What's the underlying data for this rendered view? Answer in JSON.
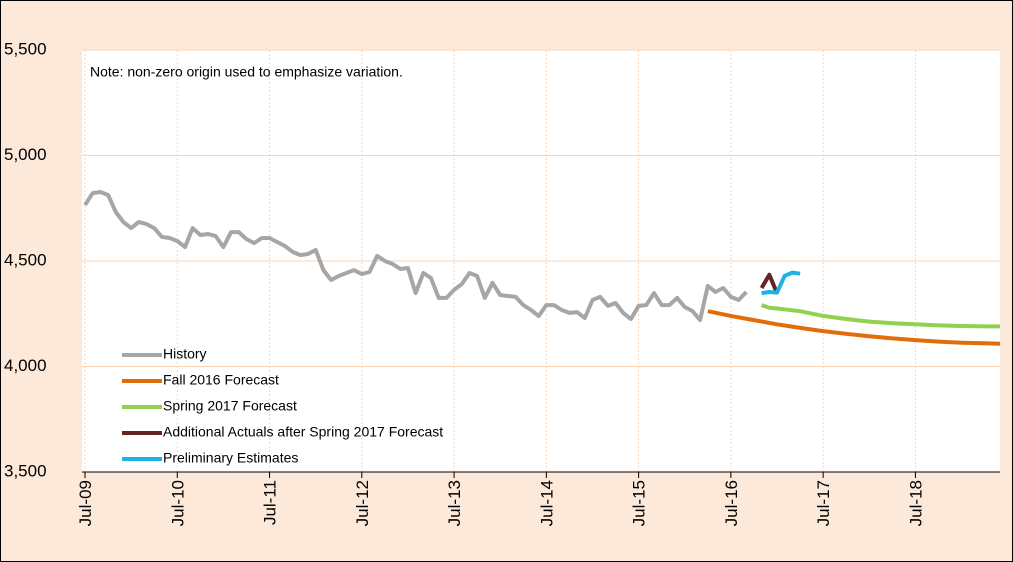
{
  "chart_data": {
    "type": "line",
    "annotations": [
      "Note: non-zero origin used to emphasize variation."
    ],
    "xlim": [
      "2009-07",
      "2019-06"
    ],
    "xticks": [
      {
        "value": "2009-07",
        "label": "Jul-09"
      },
      {
        "value": "2010-07",
        "label": "Jul-10"
      },
      {
        "value": "2011-07",
        "label": "Jul-11"
      },
      {
        "value": "2012-07",
        "label": "Jul-12"
      },
      {
        "value": "2013-07",
        "label": "Jul-13"
      },
      {
        "value": "2014-07",
        "label": "Jul-14"
      },
      {
        "value": "2015-07",
        "label": "Jul-15"
      },
      {
        "value": "2016-07",
        "label": "Jul-16"
      },
      {
        "value": "2017-07",
        "label": "Jul-17"
      },
      {
        "value": "2018-07",
        "label": "Jul-18"
      }
    ],
    "ylim": [
      3500,
      5500
    ],
    "yticks": [
      {
        "value": 3500,
        "label": "3,500"
      },
      {
        "value": 4000,
        "label": "4,000"
      },
      {
        "value": 4500,
        "label": "4,500"
      },
      {
        "value": 5000,
        "label": "5,000"
      },
      {
        "value": 5500,
        "label": "5,500"
      }
    ],
    "grid": true,
    "legend": "lower left",
    "series": [
      {
        "name": "History",
        "color": "#a6a6a6",
        "x": [
          "2009-07",
          "2009-08",
          "2009-09",
          "2009-10",
          "2009-11",
          "2009-12",
          "2010-01",
          "2010-02",
          "2010-03",
          "2010-04",
          "2010-05",
          "2010-06",
          "2010-07",
          "2010-08",
          "2010-09",
          "2010-10",
          "2010-11",
          "2010-12",
          "2011-01",
          "2011-02",
          "2011-03",
          "2011-04",
          "2011-05",
          "2011-06",
          "2011-07",
          "2011-08",
          "2011-09",
          "2011-10",
          "2011-11",
          "2011-12",
          "2012-01",
          "2012-02",
          "2012-03",
          "2012-04",
          "2012-05",
          "2012-06",
          "2012-07",
          "2012-08",
          "2012-09",
          "2012-10",
          "2012-11",
          "2012-12",
          "2013-01",
          "2013-02",
          "2013-03",
          "2013-04",
          "2013-05",
          "2013-06",
          "2013-07",
          "2013-08",
          "2013-09",
          "2013-10",
          "2013-11",
          "2013-12",
          "2014-01",
          "2014-02",
          "2014-03",
          "2014-04",
          "2014-05",
          "2014-06",
          "2014-07",
          "2014-08",
          "2014-09",
          "2014-10",
          "2014-11",
          "2014-12",
          "2015-01",
          "2015-02",
          "2015-03",
          "2015-04",
          "2015-05",
          "2015-06",
          "2015-07",
          "2015-08",
          "2015-09",
          "2015-10",
          "2015-11",
          "2015-12",
          "2016-01",
          "2016-02",
          "2016-03",
          "2016-04",
          "2016-05",
          "2016-06",
          "2016-07",
          "2016-08",
          "2016-09"
        ],
        "values": [
          4765,
          4822,
          4827,
          4813,
          4732,
          4685,
          4656,
          4685,
          4675,
          4656,
          4614,
          4609,
          4595,
          4566,
          4656,
          4623,
          4628,
          4618,
          4566,
          4637,
          4637,
          4604,
          4585,
          4609,
          4609,
          4590,
          4571,
          4543,
          4528,
          4533,
          4552,
          4457,
          4410,
          4429,
          4443,
          4457,
          4438,
          4448,
          4524,
          4500,
          4486,
          4462,
          4467,
          4348,
          4443,
          4419,
          4325,
          4325,
          4363,
          4391,
          4443,
          4429,
          4325,
          4396,
          4339,
          4334,
          4330,
          4291,
          4268,
          4239,
          4291,
          4291,
          4268,
          4254,
          4258,
          4230,
          4315,
          4330,
          4287,
          4301,
          4254,
          4225,
          4287,
          4291,
          4348,
          4291,
          4291,
          4325,
          4282,
          4263,
          4220,
          4382,
          4353,
          4372,
          4330,
          4315,
          4353
        ]
      },
      {
        "name": "Fall 2016 Forecast",
        "color": "#e36c0a",
        "x": [
          "2016-04",
          "2016-07",
          "2016-10",
          "2017-01",
          "2017-04",
          "2017-07",
          "2017-10",
          "2018-01",
          "2018-04",
          "2018-07",
          "2018-10",
          "2019-01",
          "2019-04",
          "2019-06"
        ],
        "values": [
          4262,
          4240,
          4220,
          4200,
          4183,
          4168,
          4155,
          4143,
          4133,
          4125,
          4118,
          4113,
          4110,
          4108
        ]
      },
      {
        "name": "Spring 2017 Forecast",
        "color": "#92d050",
        "x": [
          "2016-11",
          "2016-12",
          "2017-01",
          "2017-04",
          "2017-07",
          "2017-10",
          "2018-01",
          "2018-04",
          "2018-07",
          "2018-10",
          "2019-01",
          "2019-04",
          "2019-06"
        ],
        "values": [
          4291,
          4278,
          4275,
          4262,
          4240,
          4225,
          4213,
          4205,
          4200,
          4195,
          4192,
          4190,
          4190
        ]
      },
      {
        "name": "Additional Actuals after Spring 2017 Forecast",
        "color": "#632523",
        "x": [
          "2016-11",
          "2016-12",
          "2017-01"
        ],
        "values": [
          4372,
          4435,
          4348
        ]
      },
      {
        "name": "Preliminary Estimates",
        "color": "#1fb1e6",
        "x": [
          "2016-11",
          "2016-12",
          "2017-01",
          "2017-02",
          "2017-03",
          "2017-04"
        ],
        "values": [
          4348,
          4353,
          4350,
          4430,
          4445,
          4440
        ]
      }
    ]
  }
}
